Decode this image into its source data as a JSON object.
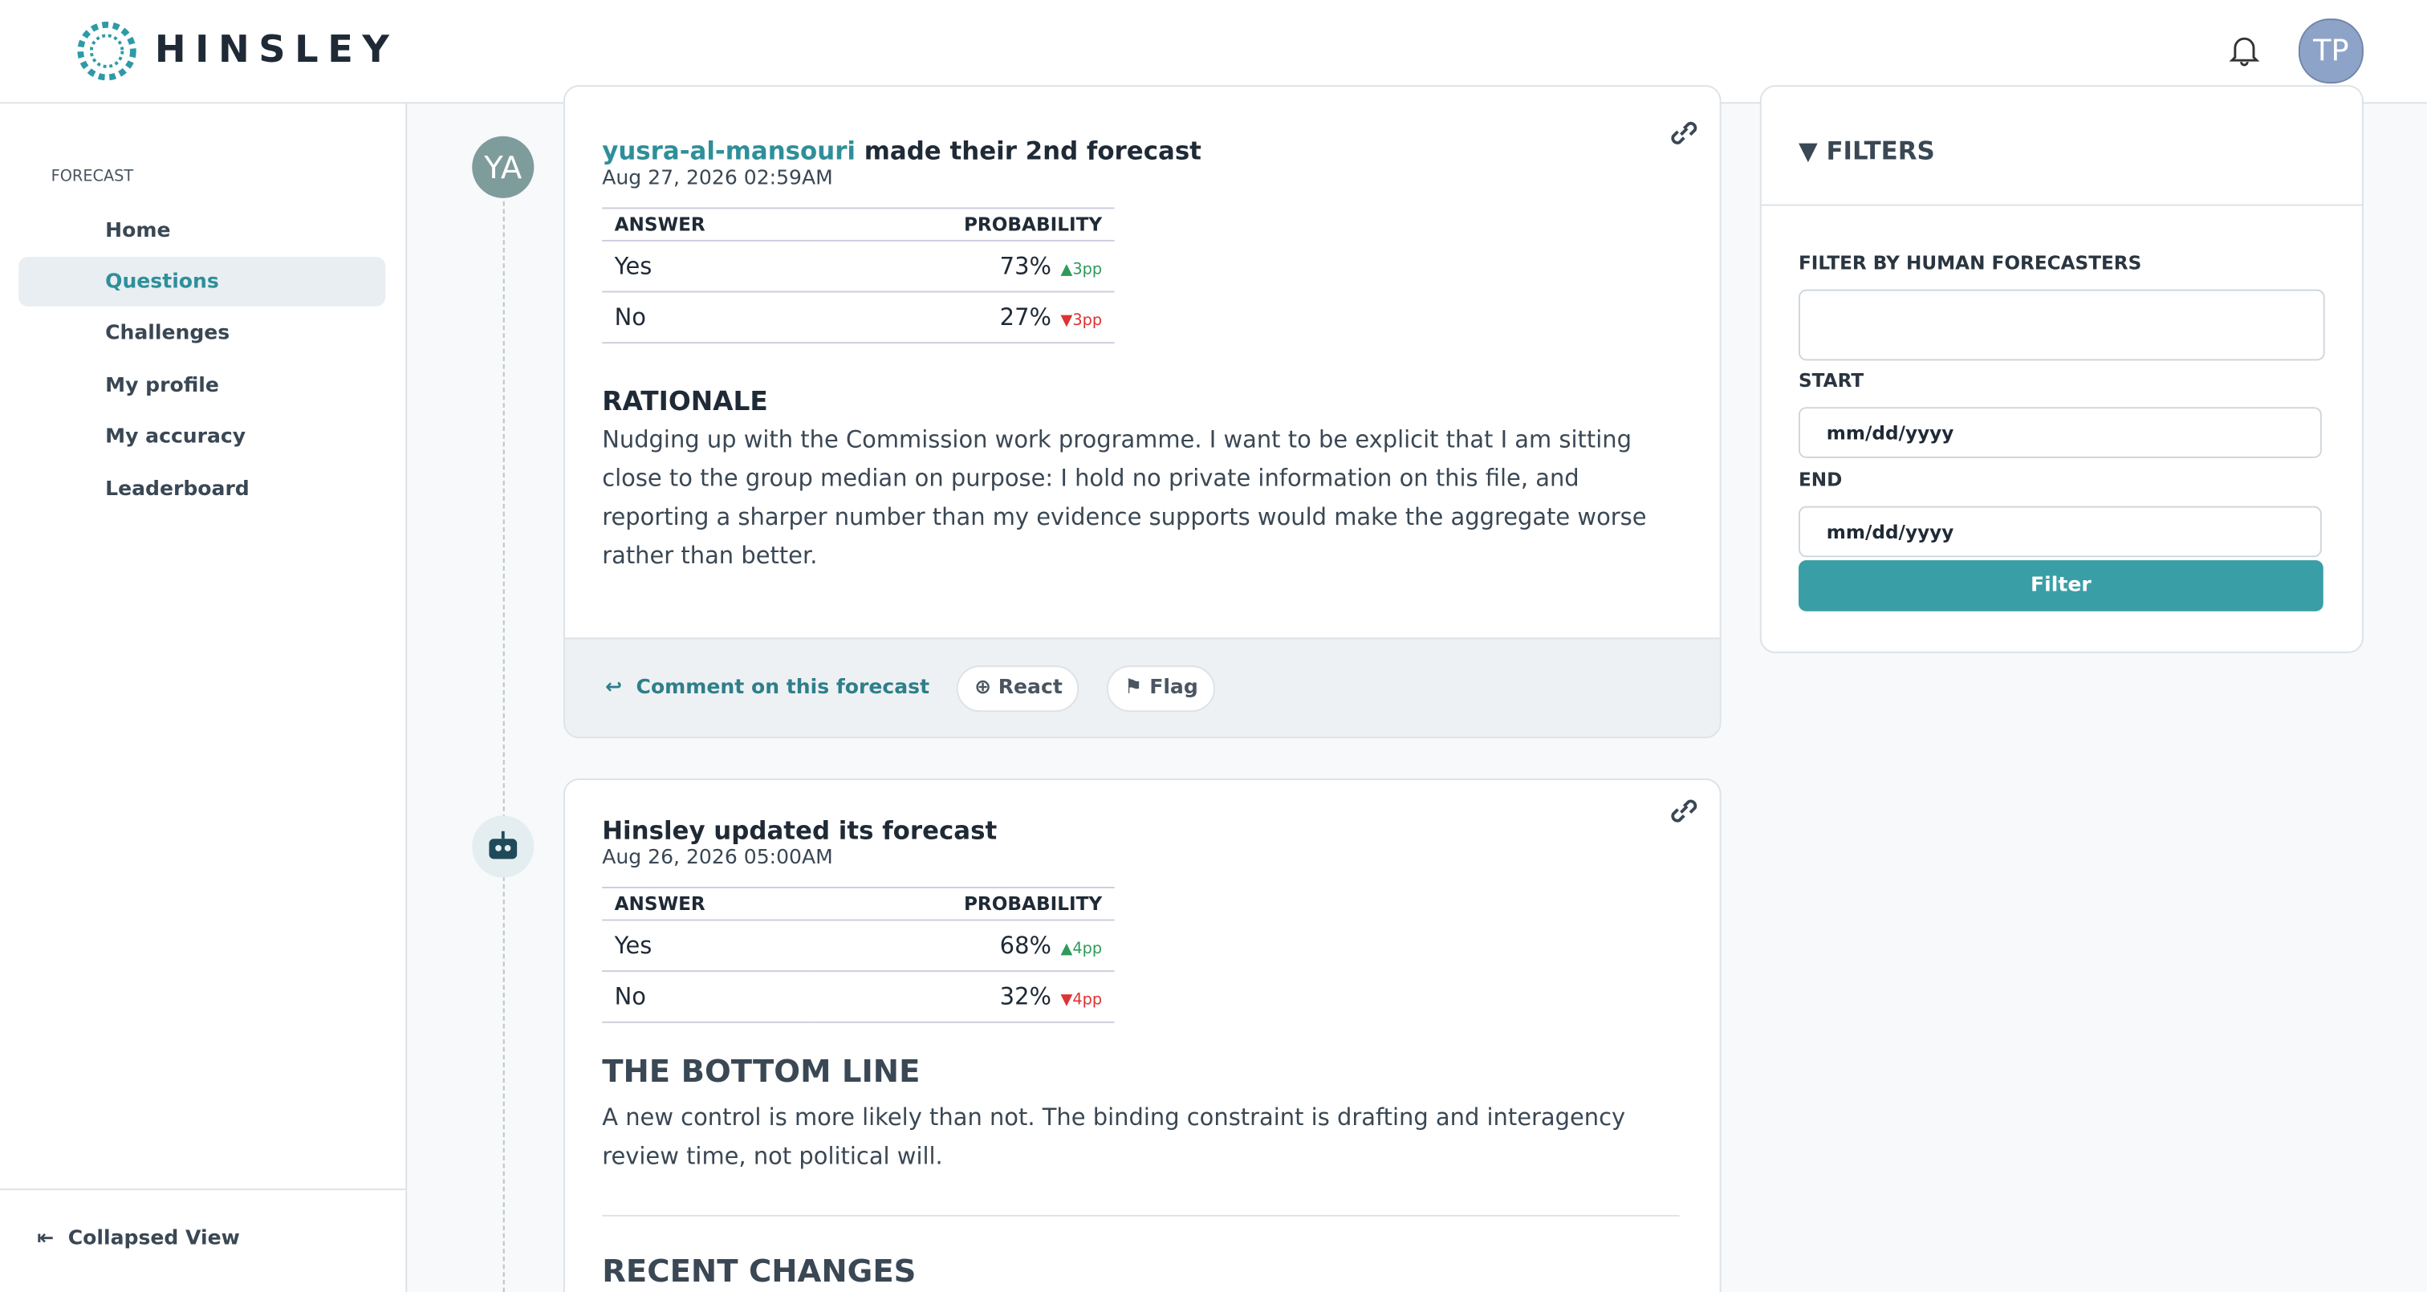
{
  "header": {
    "brand": "HINSLEY",
    "user_initials": "TP"
  },
  "sidebar": {
    "section": "FORECAST",
    "nav": [
      "Home",
      "Questions",
      "Challenges",
      "My profile",
      "My accuracy",
      "Leaderboard"
    ],
    "active": "Questions",
    "collapse": "Collapsed View"
  },
  "feed": [
    {
      "avatar": "YA",
      "author": "yusra-al-mansouri",
      "action": "made their 2nd forecast",
      "date": "Aug 27, 2026 02:59AM",
      "table": {
        "headers": [
          "ANSWER",
          "PROBABILITY"
        ],
        "rows": [
          [
            "Yes",
            "73%",
            "▲3pp"
          ],
          [
            "No",
            "27%",
            "▼3pp"
          ]
        ]
      },
      "section_title": "RATIONALE",
      "text": "Nudging up with the Commission work programme. I want to be explicit that I am sitting close to the group median on purpose: I hold no private information on this file, and reporting a sharper number than my evidence supports would make the aggregate worse rather than better.",
      "actions": [
        "Comment on this forecast",
        "React",
        "Flag"
      ]
    },
    {
      "author": "Hinsley updated its forecast",
      "date": "Aug 26, 2026 05:00AM",
      "table": {
        "headers": [
          "ANSWER",
          "PROBABILITY"
        ],
        "rows": [
          [
            "Yes",
            "68%",
            "▲4pp"
          ],
          [
            "No",
            "32%",
            "▼4pp"
          ]
        ]
      },
      "section_title": "THE BOTTOM LINE",
      "text": "A new control is more likely than not. The binding constraint is drafting and interagency review time, not political will.",
      "section_title_2": "RECENT CHANGES"
    }
  ],
  "filters": {
    "title": "FILTERS",
    "human_label": "FILTER BY HUMAN FORECASTERS",
    "start_label": "START",
    "start_placeholder": "mm/dd/yyyy",
    "end_label": "END",
    "end_placeholder": "mm/dd/yyyy",
    "button": "Filter"
  }
}
